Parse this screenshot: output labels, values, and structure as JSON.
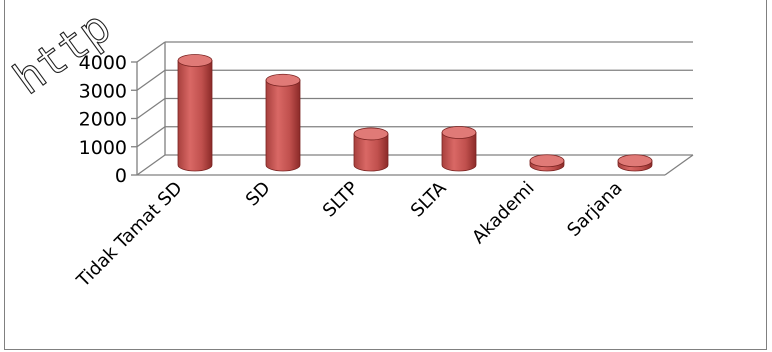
{
  "watermark": "http",
  "chart_data": {
    "type": "bar",
    "style": "3d-cylinder",
    "categories": [
      "Tidak Tamat SD",
      "SD",
      "SLTP",
      "SLTA",
      "Akademi",
      "Sarjana"
    ],
    "values": [
      3700,
      3000,
      1100,
      1150,
      150,
      150
    ],
    "ylim": [
      0,
      4000
    ],
    "yticks": [
      "0",
      "1000",
      "2000",
      "3000",
      "4000"
    ],
    "grid": true,
    "legend": "none",
    "colors": {
      "bar": "#c0504d",
      "bar_dark": "#8b2a28",
      "bar_light": "#e07a77",
      "grid": "#808080"
    }
  }
}
